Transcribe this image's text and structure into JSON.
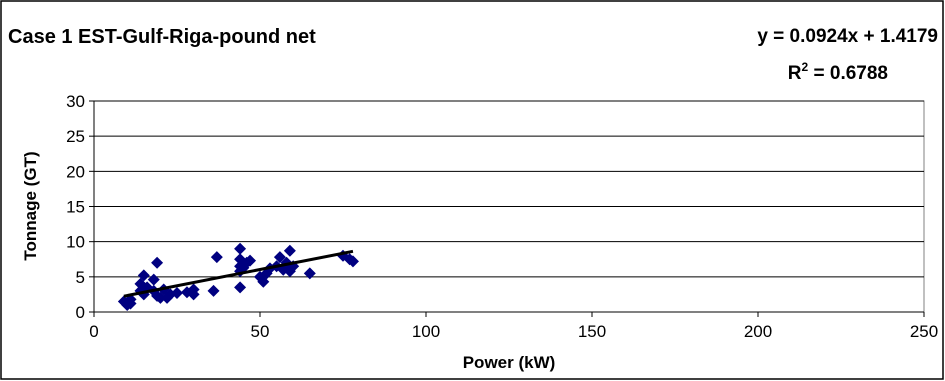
{
  "chart_data": {
    "type": "scatter",
    "title": "Case 1 EST-Gulf-Riga-pound net",
    "xlabel": "Power (kW)",
    "ylabel": "Tonnage (GT)",
    "xlim": [
      0,
      250
    ],
    "ylim": [
      0,
      30
    ],
    "xticks": [
      0,
      50,
      100,
      150,
      200,
      250
    ],
    "yticks": [
      0,
      5,
      10,
      15,
      20,
      25,
      30
    ],
    "grid": "horizontal",
    "marker_color": "#000080",
    "trendline": {
      "equation": "y = 0.0924x + 1.4179",
      "r2_prefix": "R",
      "r2_sup": "2",
      "r2_value": " = 0.6788",
      "slope": 0.0924,
      "intercept": 1.4179,
      "x_range": [
        9,
        78
      ],
      "color": "#000000"
    },
    "points": [
      [
        9,
        1.5
      ],
      [
        10,
        1.0
      ],
      [
        10,
        1.3
      ],
      [
        11,
        1.2
      ],
      [
        11,
        1.8
      ],
      [
        14,
        3.0
      ],
      [
        14,
        4.0
      ],
      [
        15,
        5.2
      ],
      [
        15,
        2.5
      ],
      [
        16,
        3.5
      ],
      [
        18,
        3.0
      ],
      [
        18,
        4.6
      ],
      [
        19,
        7.0
      ],
      [
        19,
        2.3
      ],
      [
        20,
        2.0
      ],
      [
        21,
        3.2
      ],
      [
        22,
        2.0
      ],
      [
        23,
        2.5
      ],
      [
        25,
        2.7
      ],
      [
        28,
        2.8
      ],
      [
        30,
        3.2
      ],
      [
        30,
        2.5
      ],
      [
        36,
        3.0
      ],
      [
        37,
        7.8
      ],
      [
        44,
        3.5
      ],
      [
        44,
        5.8
      ],
      [
        44,
        6.5
      ],
      [
        44,
        7.5
      ],
      [
        44,
        9.0
      ],
      [
        45,
        6.3
      ],
      [
        46,
        7.0
      ],
      [
        47,
        7.3
      ],
      [
        50,
        5.0
      ],
      [
        51,
        4.3
      ],
      [
        52,
        5.5
      ],
      [
        53,
        6.2
      ],
      [
        55,
        6.5
      ],
      [
        56,
        7.8
      ],
      [
        57,
        6.0
      ],
      [
        58,
        7.0
      ],
      [
        58,
        6.5
      ],
      [
        59,
        8.7
      ],
      [
        59,
        5.8
      ],
      [
        60,
        6.5
      ],
      [
        65,
        5.5
      ],
      [
        75,
        8.0
      ],
      [
        77,
        7.5
      ],
      [
        78,
        7.2
      ]
    ]
  }
}
